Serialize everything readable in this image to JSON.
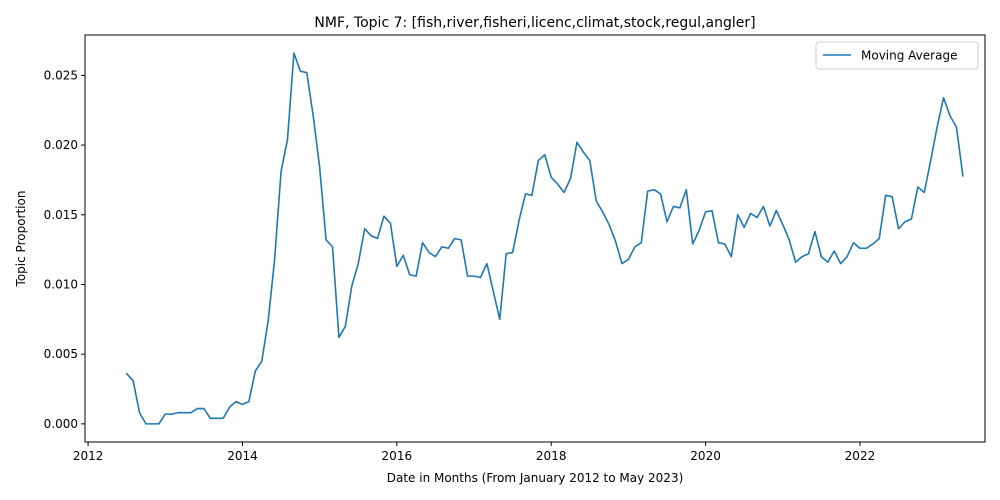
{
  "chart_data": {
    "type": "line",
    "title": "NMF, Topic 7: [fish,river,fisheri,licenc,climat,stock,regul,angler]",
    "xlabel": "Date in Months (From January 2012 to May 2023)",
    "ylabel": "Topic Proportion",
    "xlim": [
      2011.96,
      2023.62
    ],
    "ylim": [
      -0.0013,
      0.0279
    ],
    "x_ticks": [
      2012,
      2014,
      2016,
      2018,
      2020,
      2022
    ],
    "y_ticks": [
      0.0,
      0.005,
      0.01,
      0.015,
      0.02,
      0.025
    ],
    "y_tick_labels": [
      "0.000",
      "0.005",
      "0.010",
      "0.015",
      "0.020",
      "0.025"
    ],
    "grid": false,
    "legend_position": "top-right",
    "color": "#1f77b4",
    "series": [
      {
        "name": "Moving Average",
        "start": "2012-07",
        "values": [
          0.0036,
          0.0031,
          0.0008,
          0.0,
          0.0,
          0.0,
          0.0007,
          0.0007,
          0.0008,
          0.0008,
          0.0008,
          0.0011,
          0.0011,
          0.0004,
          0.0004,
          0.0004,
          0.0012,
          0.0016,
          0.0014,
          0.0016,
          0.0038,
          0.0045,
          0.0074,
          0.0118,
          0.0181,
          0.0204,
          0.0266,
          0.0253,
          0.0252,
          0.0221,
          0.0184,
          0.0132,
          0.0127,
          0.0062,
          0.007,
          0.0099,
          0.0115,
          0.014,
          0.0135,
          0.0133,
          0.0149,
          0.0144,
          0.0113,
          0.0121,
          0.0107,
          0.0106,
          0.013,
          0.0123,
          0.012,
          0.0127,
          0.0126,
          0.0133,
          0.0132,
          0.0106,
          0.0106,
          0.0105,
          0.0115,
          0.0095,
          0.0075,
          0.0122,
          0.0123,
          0.0146,
          0.0165,
          0.0164,
          0.0189,
          0.0193,
          0.0177,
          0.0172,
          0.0166,
          0.0176,
          0.0202,
          0.0195,
          0.0189,
          0.016,
          0.0152,
          0.0143,
          0.0131,
          0.0115,
          0.0118,
          0.0127,
          0.013,
          0.0167,
          0.0168,
          0.0165,
          0.0145,
          0.0156,
          0.0155,
          0.0168,
          0.0129,
          0.0139,
          0.0152,
          0.0153,
          0.013,
          0.0129,
          0.012,
          0.015,
          0.0141,
          0.0151,
          0.0148,
          0.0156,
          0.0142,
          0.0153,
          0.0143,
          0.0132,
          0.0116,
          0.012,
          0.0122,
          0.0138,
          0.012,
          0.0116,
          0.0124,
          0.0115,
          0.012,
          0.013,
          0.0126,
          0.0126,
          0.0129,
          0.0133,
          0.0164,
          0.0163,
          0.014,
          0.0145,
          0.0147,
          0.017,
          0.0166,
          0.0189,
          0.0213,
          0.0234,
          0.0221,
          0.0213,
          0.0178
        ]
      }
    ]
  }
}
